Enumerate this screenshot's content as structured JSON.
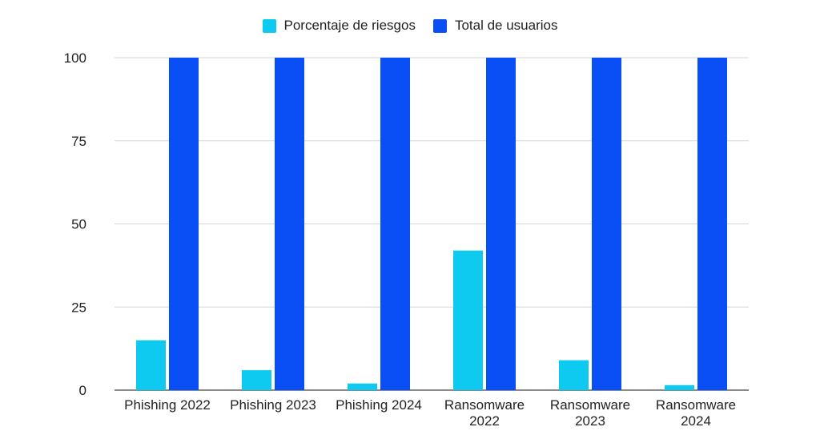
{
  "chart_data": {
    "type": "bar",
    "categories": [
      [
        "Phishing 2022"
      ],
      [
        "Phishing 2023"
      ],
      [
        "Phishing 2024"
      ],
      [
        "Ransomware",
        "2022"
      ],
      [
        "Ransomware",
        "2023"
      ],
      [
        "Ransomware",
        "2024"
      ]
    ],
    "series": [
      {
        "name": "Porcentaje de riesgos",
        "color": "#0fcaf0",
        "values": [
          15,
          6,
          2,
          42,
          9,
          1.5
        ]
      },
      {
        "name": "Total de usuarios",
        "color": "#0a4ff5",
        "values": [
          100,
          100,
          100,
          100,
          100,
          100
        ]
      }
    ],
    "yticks": [
      0,
      25,
      50,
      75,
      100
    ],
    "ylim": [
      0,
      100
    ],
    "grid": true,
    "legend_position": "top"
  }
}
